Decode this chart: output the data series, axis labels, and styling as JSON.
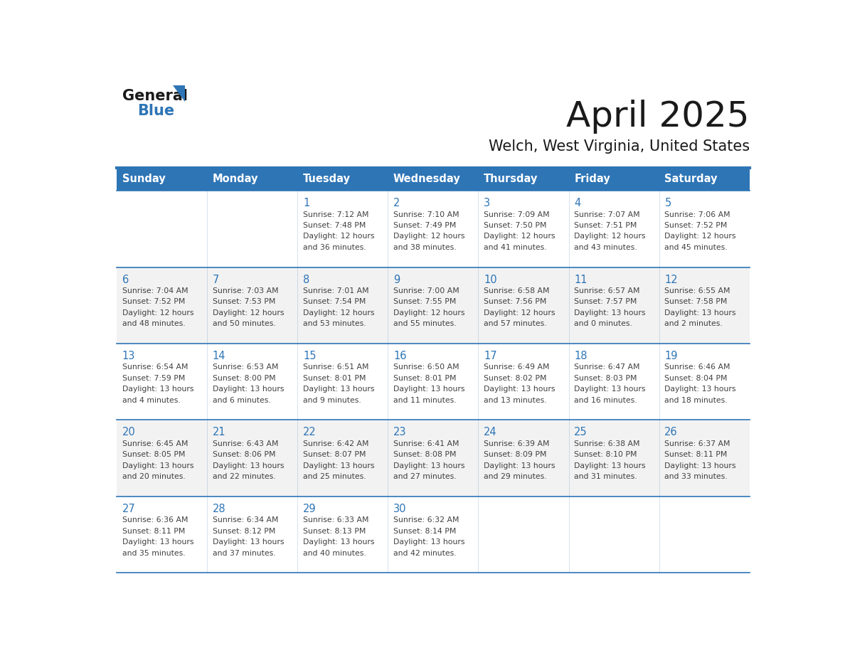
{
  "title": "April 2025",
  "subtitle": "Welch, West Virginia, United States",
  "header_bg_color": "#2E75B6",
  "header_text_color": "#FFFFFF",
  "day_names": [
    "Sunday",
    "Monday",
    "Tuesday",
    "Wednesday",
    "Thursday",
    "Friday",
    "Saturday"
  ],
  "row_bg_even": "#FFFFFF",
  "row_bg_odd": "#F2F2F2",
  "cell_border_color": "#2E75B6",
  "day_number_color": "#2E75B6",
  "info_text_color": "#404040",
  "logo_general_color": "#1A1A1A",
  "logo_blue_color": "#2E75B6",
  "weeks": [
    {
      "days": [
        {
          "num": "",
          "sunrise": "",
          "sunset": "",
          "daylight": ""
        },
        {
          "num": "",
          "sunrise": "",
          "sunset": "",
          "daylight": ""
        },
        {
          "num": "1",
          "sunrise": "7:12 AM",
          "sunset": "7:48 PM",
          "daylight": "12 hours\nand 36 minutes."
        },
        {
          "num": "2",
          "sunrise": "7:10 AM",
          "sunset": "7:49 PM",
          "daylight": "12 hours\nand 38 minutes."
        },
        {
          "num": "3",
          "sunrise": "7:09 AM",
          "sunset": "7:50 PM",
          "daylight": "12 hours\nand 41 minutes."
        },
        {
          "num": "4",
          "sunrise": "7:07 AM",
          "sunset": "7:51 PM",
          "daylight": "12 hours\nand 43 minutes."
        },
        {
          "num": "5",
          "sunrise": "7:06 AM",
          "sunset": "7:52 PM",
          "daylight": "12 hours\nand 45 minutes."
        }
      ]
    },
    {
      "days": [
        {
          "num": "6",
          "sunrise": "7:04 AM",
          "sunset": "7:52 PM",
          "daylight": "12 hours\nand 48 minutes."
        },
        {
          "num": "7",
          "sunrise": "7:03 AM",
          "sunset": "7:53 PM",
          "daylight": "12 hours\nand 50 minutes."
        },
        {
          "num": "8",
          "sunrise": "7:01 AM",
          "sunset": "7:54 PM",
          "daylight": "12 hours\nand 53 minutes."
        },
        {
          "num": "9",
          "sunrise": "7:00 AM",
          "sunset": "7:55 PM",
          "daylight": "12 hours\nand 55 minutes."
        },
        {
          "num": "10",
          "sunrise": "6:58 AM",
          "sunset": "7:56 PM",
          "daylight": "12 hours\nand 57 minutes."
        },
        {
          "num": "11",
          "sunrise": "6:57 AM",
          "sunset": "7:57 PM",
          "daylight": "13 hours\nand 0 minutes."
        },
        {
          "num": "12",
          "sunrise": "6:55 AM",
          "sunset": "7:58 PM",
          "daylight": "13 hours\nand 2 minutes."
        }
      ]
    },
    {
      "days": [
        {
          "num": "13",
          "sunrise": "6:54 AM",
          "sunset": "7:59 PM",
          "daylight": "13 hours\nand 4 minutes."
        },
        {
          "num": "14",
          "sunrise": "6:53 AM",
          "sunset": "8:00 PM",
          "daylight": "13 hours\nand 6 minutes."
        },
        {
          "num": "15",
          "sunrise": "6:51 AM",
          "sunset": "8:01 PM",
          "daylight": "13 hours\nand 9 minutes."
        },
        {
          "num": "16",
          "sunrise": "6:50 AM",
          "sunset": "8:01 PM",
          "daylight": "13 hours\nand 11 minutes."
        },
        {
          "num": "17",
          "sunrise": "6:49 AM",
          "sunset": "8:02 PM",
          "daylight": "13 hours\nand 13 minutes."
        },
        {
          "num": "18",
          "sunrise": "6:47 AM",
          "sunset": "8:03 PM",
          "daylight": "13 hours\nand 16 minutes."
        },
        {
          "num": "19",
          "sunrise": "6:46 AM",
          "sunset": "8:04 PM",
          "daylight": "13 hours\nand 18 minutes."
        }
      ]
    },
    {
      "days": [
        {
          "num": "20",
          "sunrise": "6:45 AM",
          "sunset": "8:05 PM",
          "daylight": "13 hours\nand 20 minutes."
        },
        {
          "num": "21",
          "sunrise": "6:43 AM",
          "sunset": "8:06 PM",
          "daylight": "13 hours\nand 22 minutes."
        },
        {
          "num": "22",
          "sunrise": "6:42 AM",
          "sunset": "8:07 PM",
          "daylight": "13 hours\nand 25 minutes."
        },
        {
          "num": "23",
          "sunrise": "6:41 AM",
          "sunset": "8:08 PM",
          "daylight": "13 hours\nand 27 minutes."
        },
        {
          "num": "24",
          "sunrise": "6:39 AM",
          "sunset": "8:09 PM",
          "daylight": "13 hours\nand 29 minutes."
        },
        {
          "num": "25",
          "sunrise": "6:38 AM",
          "sunset": "8:10 PM",
          "daylight": "13 hours\nand 31 minutes."
        },
        {
          "num": "26",
          "sunrise": "6:37 AM",
          "sunset": "8:11 PM",
          "daylight": "13 hours\nand 33 minutes."
        }
      ]
    },
    {
      "days": [
        {
          "num": "27",
          "sunrise": "6:36 AM",
          "sunset": "8:11 PM",
          "daylight": "13 hours\nand 35 minutes."
        },
        {
          "num": "28",
          "sunrise": "6:34 AM",
          "sunset": "8:12 PM",
          "daylight": "13 hours\nand 37 minutes."
        },
        {
          "num": "29",
          "sunrise": "6:33 AM",
          "sunset": "8:13 PM",
          "daylight": "13 hours\nand 40 minutes."
        },
        {
          "num": "30",
          "sunrise": "6:32 AM",
          "sunset": "8:14 PM",
          "daylight": "13 hours\nand 42 minutes."
        },
        {
          "num": "",
          "sunrise": "",
          "sunset": "",
          "daylight": ""
        },
        {
          "num": "",
          "sunrise": "",
          "sunset": "",
          "daylight": ""
        },
        {
          "num": "",
          "sunrise": "",
          "sunset": "",
          "daylight": ""
        }
      ]
    }
  ]
}
